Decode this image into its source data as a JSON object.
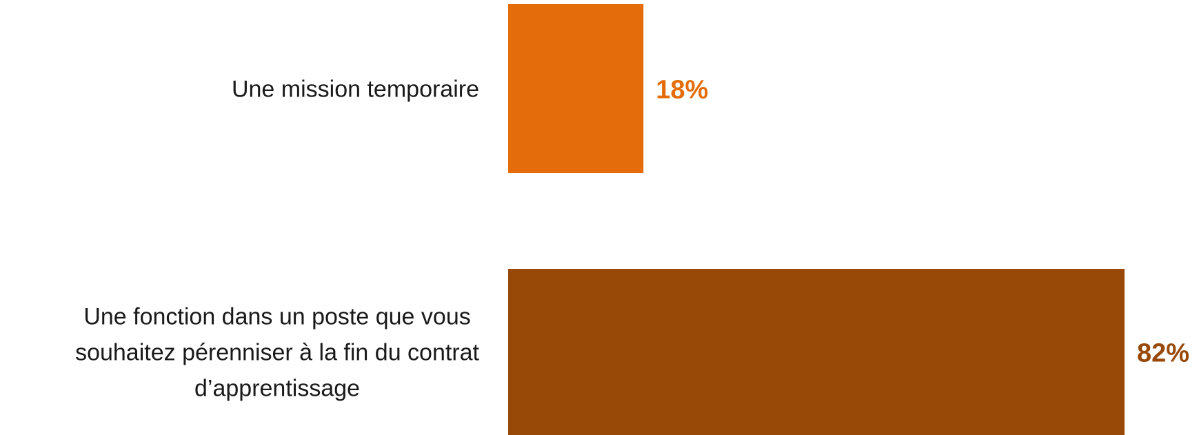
{
  "chart_data": {
    "type": "bar",
    "orientation": "horizontal",
    "categories": [
      [
        "Une mission temporaire"
      ],
      [
        "Une fonction dans un poste que vous",
        "souhaitez pérenniser à la fin du contrat",
        "d’apprentissage"
      ]
    ],
    "values": [
      18,
      82
    ],
    "value_labels": [
      "18%",
      "82%"
    ],
    "colors": [
      "#E46C0A",
      "#984807"
    ],
    "xlim": [
      0,
      82
    ],
    "grid": false,
    "legend": "none"
  }
}
